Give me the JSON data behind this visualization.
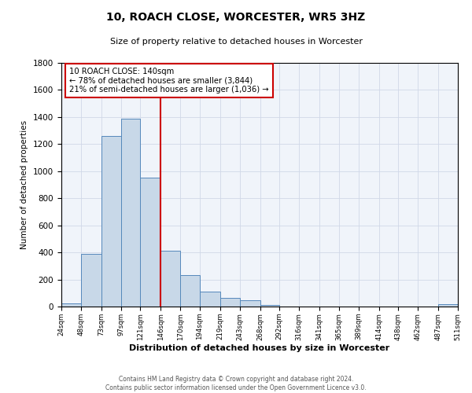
{
  "title": "10, ROACH CLOSE, WORCESTER, WR5 3HZ",
  "subtitle": "Size of property relative to detached houses in Worcester",
  "xlabel": "Distribution of detached houses by size in Worcester",
  "ylabel": "Number of detached properties",
  "bin_edges": [
    24,
    48,
    73,
    97,
    121,
    146,
    170,
    194,
    219,
    243,
    268,
    292,
    316,
    341,
    365,
    389,
    414,
    438,
    462,
    487,
    511
  ],
  "bar_heights": [
    25,
    390,
    1260,
    1390,
    950,
    415,
    235,
    110,
    65,
    45,
    10,
    2,
    0,
    0,
    0,
    0,
    0,
    0,
    0,
    15
  ],
  "bar_color": "#c8d8e8",
  "bar_edge_color": "#5588bb",
  "vline_x": 146,
  "vline_color": "#cc0000",
  "annotation_text": "10 ROACH CLOSE: 140sqm\n← 78% of detached houses are smaller (3,844)\n21% of semi-detached houses are larger (1,036) →",
  "annotation_box_color": "#cc0000",
  "annotation_bg_color": "white",
  "ylim": [
    0,
    1800
  ],
  "yticks": [
    0,
    200,
    400,
    600,
    800,
    1000,
    1200,
    1400,
    1600,
    1800
  ],
  "tick_labels": [
    "24sqm",
    "48sqm",
    "73sqm",
    "97sqm",
    "121sqm",
    "146sqm",
    "170sqm",
    "194sqm",
    "219sqm",
    "243sqm",
    "268sqm",
    "292sqm",
    "316sqm",
    "341sqm",
    "365sqm",
    "389sqm",
    "414sqm",
    "438sqm",
    "462sqm",
    "487sqm",
    "511sqm"
  ],
  "footer_line1": "Contains HM Land Registry data © Crown copyright and database right 2024.",
  "footer_line2": "Contains public sector information licensed under the Open Government Licence v3.0.",
  "grid_color": "#d0d8e8",
  "bg_color": "#f0f4fa"
}
